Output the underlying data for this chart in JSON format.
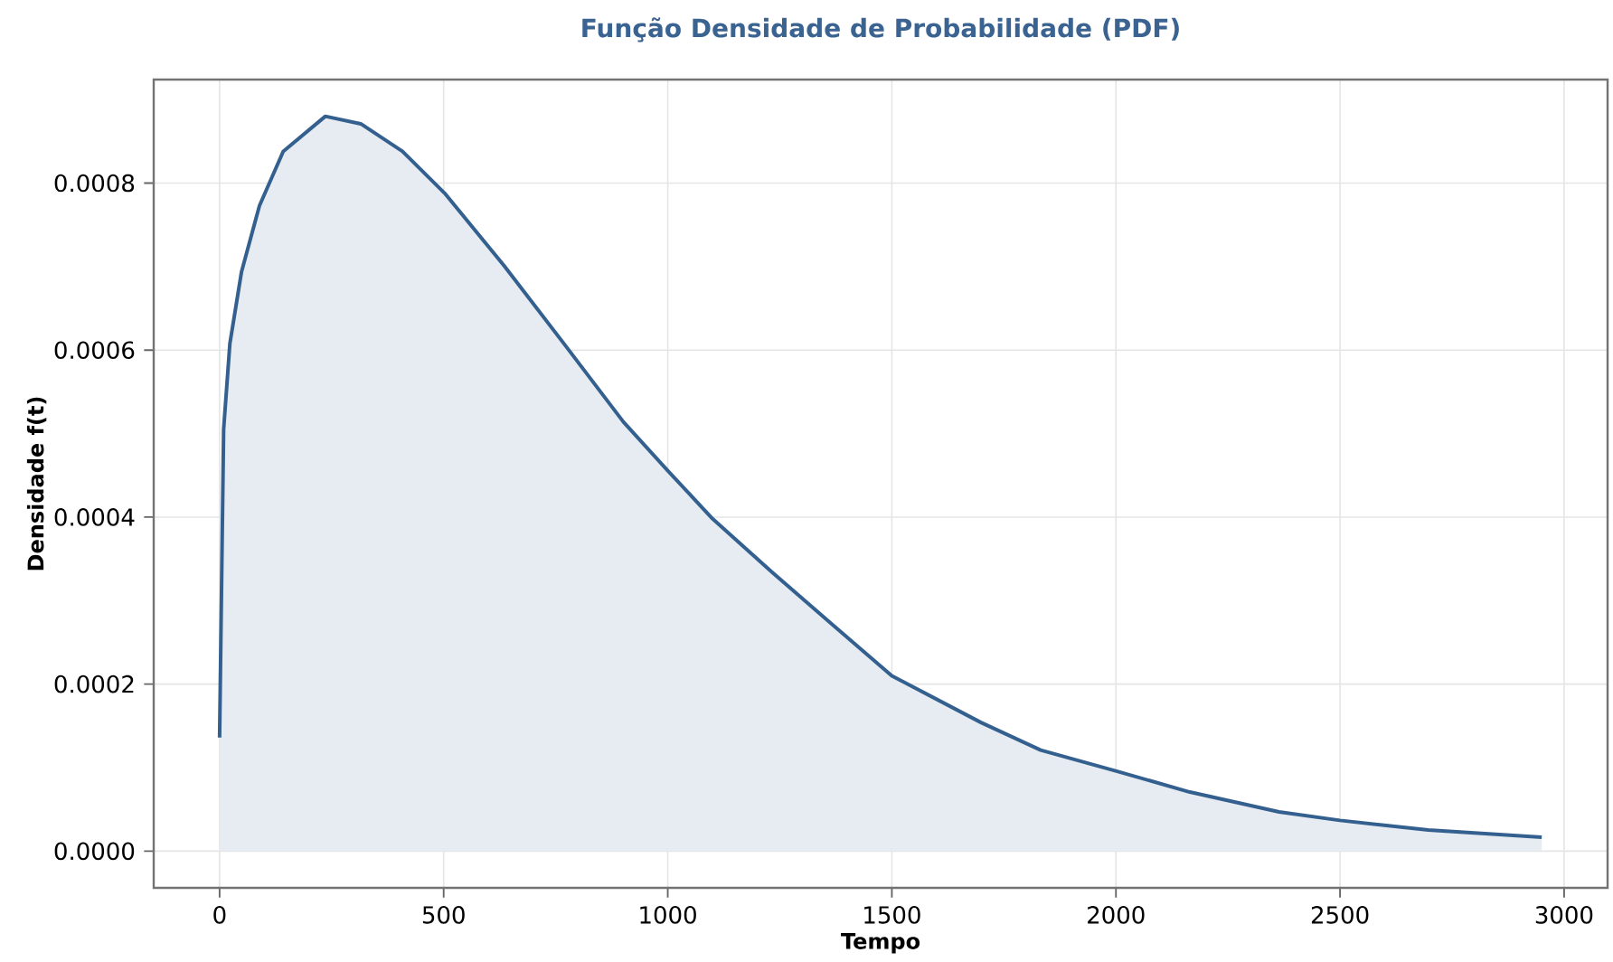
{
  "chart_data": {
    "type": "area",
    "title": "Função Densidade de Probabilidade (PDF)",
    "xlabel": "Tempo",
    "ylabel": "Densidade f(t)",
    "series": [
      {
        "color": "#34608f",
        "x": [
          0,
          9,
          23,
          49,
          89,
          142,
          236,
          315,
          408,
          502,
          635,
          768,
          901,
          1001,
          1100,
          1233,
          1366,
          1500,
          1699,
          1832,
          2001,
          2165,
          2364,
          2500,
          2697,
          2950
        ],
        "values": [
          0.000136,
          0.000505,
          0.000608,
          0.000694,
          0.000773,
          0.000838,
          0.00088,
          0.000871,
          0.000838,
          0.000788,
          0.000701,
          0.000608,
          0.000514,
          0.000455,
          0.000398,
          0.000334,
          0.000272,
          0.00021,
          0.000154,
          0.000121,
          9.58e-05,
          7.07e-05,
          4.69e-05,
          3.68e-05,
          2.53e-05,
          1.66e-05
        ]
      }
    ],
    "xlim": [
      -147,
      3097
    ],
    "ylim": [
      -4.4e-05,
      0.000924
    ],
    "xticks": [
      0,
      500,
      1000,
      1500,
      2000,
      2500,
      3000
    ],
    "yticks": [
      {
        "value": 0,
        "label": "0.0000"
      },
      {
        "value": 0.0002,
        "label": "0.0002"
      },
      {
        "value": 0.0004,
        "label": "0.0004"
      },
      {
        "value": 0.0006,
        "label": "0.0006"
      },
      {
        "value": 0.0008,
        "label": "0.0008"
      }
    ],
    "grid": true
  }
}
